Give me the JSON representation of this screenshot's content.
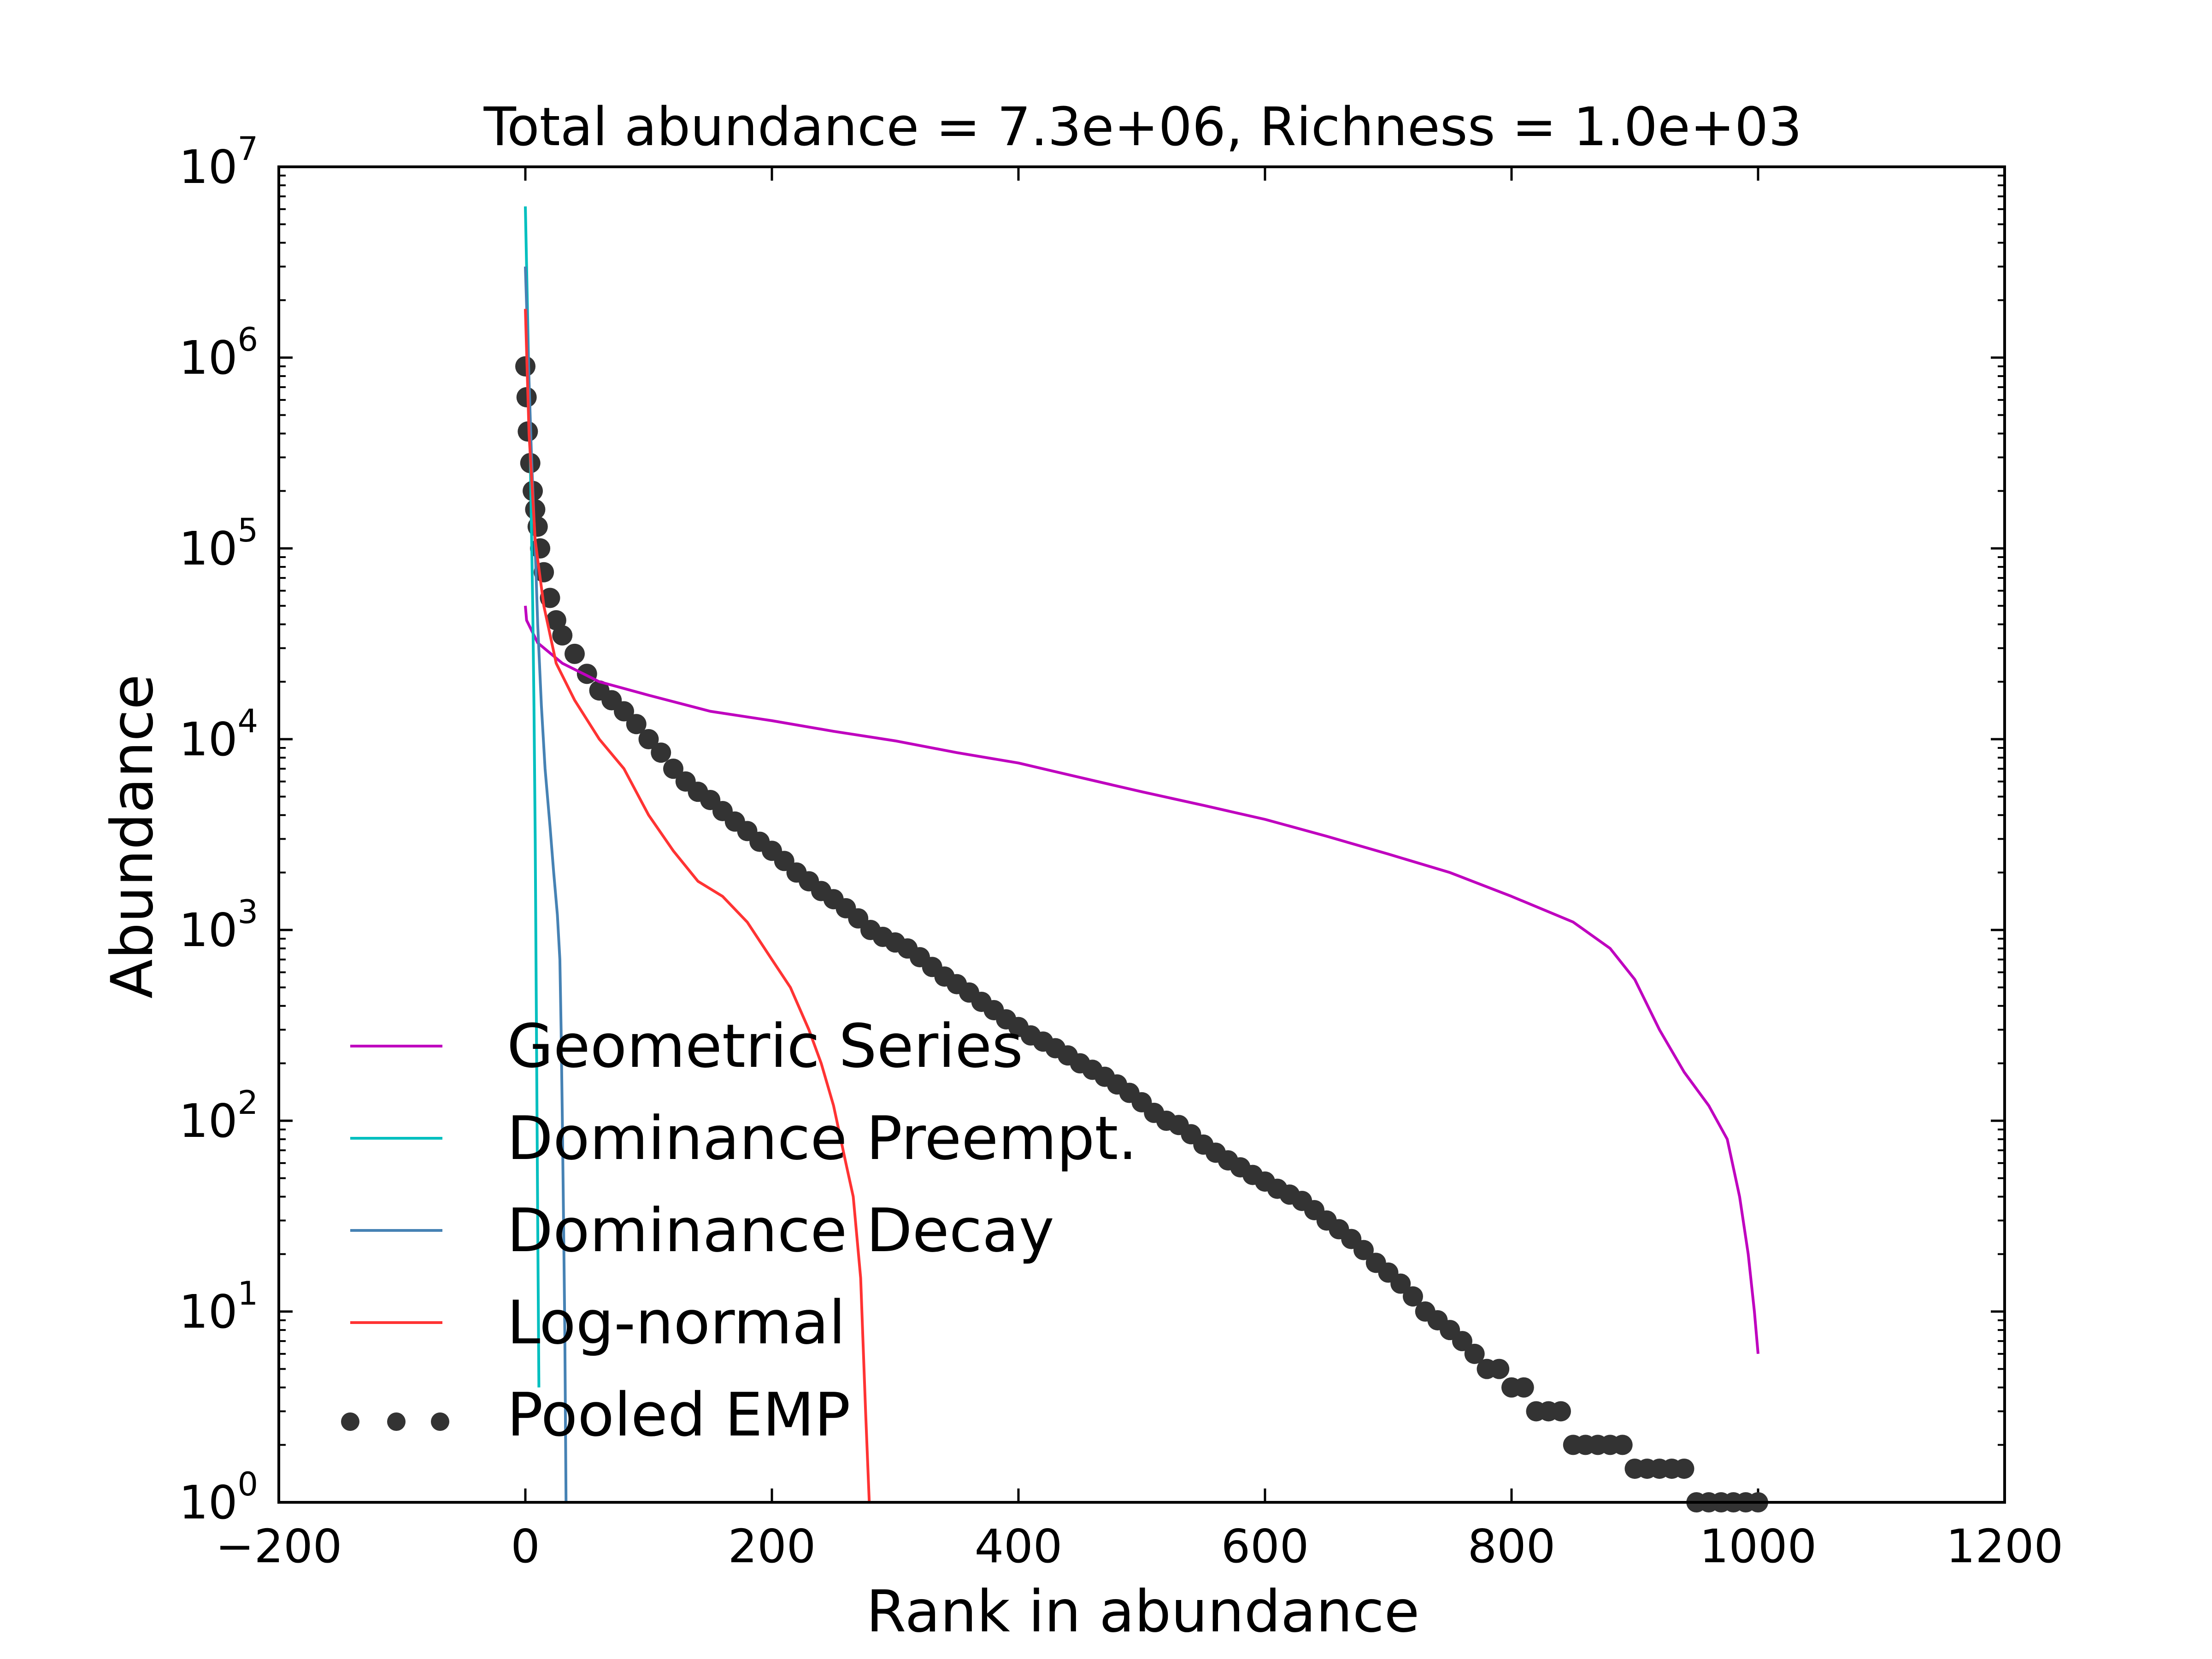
{
  "chart_data": {
    "type": "line",
    "title": "Total abundance = 7.3e+06, Richness = 1.0e+03",
    "xlabel": "Rank in abundance",
    "ylabel": "Abundance",
    "xlim": [
      -200,
      1200
    ],
    "ylim": [
      1,
      10000000
    ],
    "yscale": "log",
    "grid": false,
    "legend_position": "lower-left",
    "x_ticks": [
      {
        "value": -200,
        "label": "−200"
      },
      {
        "value": 0,
        "label": "0"
      },
      {
        "value": 200,
        "label": "200"
      },
      {
        "value": 400,
        "label": "400"
      },
      {
        "value": 600,
        "label": "600"
      },
      {
        "value": 800,
        "label": "800"
      },
      {
        "value": 1000,
        "label": "1000"
      },
      {
        "value": 1200,
        "label": "1200"
      }
    ],
    "y_ticks": [
      {
        "value": 1,
        "base": "10",
        "exp": "0"
      },
      {
        "value": 10,
        "base": "10",
        "exp": "1"
      },
      {
        "value": 100,
        "base": "10",
        "exp": "2"
      },
      {
        "value": 1000,
        "base": "10",
        "exp": "3"
      },
      {
        "value": 10000,
        "base": "10",
        "exp": "4"
      },
      {
        "value": 100000,
        "base": "10",
        "exp": "5"
      },
      {
        "value": 1000000,
        "base": "10",
        "exp": "6"
      },
      {
        "value": 10000000,
        "base": "10",
        "exp": "7"
      }
    ],
    "series": [
      {
        "name": "Geometric Series",
        "style": "line",
        "color": "#bf00bf",
        "points": [
          [
            0,
            50000
          ],
          [
            1,
            42000
          ],
          [
            10,
            32000
          ],
          [
            30,
            25000
          ],
          [
            60,
            20000
          ],
          [
            100,
            17000
          ],
          [
            150,
            14000
          ],
          [
            200,
            12500
          ],
          [
            250,
            11000
          ],
          [
            300,
            9800
          ],
          [
            350,
            8500
          ],
          [
            400,
            7500
          ],
          [
            450,
            6300
          ],
          [
            500,
            5300
          ],
          [
            550,
            4500
          ],
          [
            600,
            3800
          ],
          [
            650,
            3100
          ],
          [
            700,
            2500
          ],
          [
            750,
            2000
          ],
          [
            800,
            1500
          ],
          [
            850,
            1100
          ],
          [
            880,
            800
          ],
          [
            900,
            550
          ],
          [
            920,
            300
          ],
          [
            940,
            180
          ],
          [
            960,
            120
          ],
          [
            975,
            80
          ],
          [
            985,
            40
          ],
          [
            992,
            20
          ],
          [
            997,
            10
          ],
          [
            1000,
            6
          ]
        ]
      },
      {
        "name": "Dominance Preempt.",
        "style": "line",
        "color": "#00bfbf",
        "points": [
          [
            0,
            6200000
          ],
          [
            1,
            3000000
          ],
          [
            2,
            1500000
          ],
          [
            3,
            700000
          ],
          [
            4,
            300000
          ],
          [
            5,
            120000
          ],
          [
            6,
            50000
          ],
          [
            7,
            15000
          ],
          [
            8,
            3000
          ],
          [
            9,
            300
          ],
          [
            10,
            30
          ],
          [
            11,
            4
          ]
        ]
      },
      {
        "name": "Dominance Decay",
        "style": "line",
        "color": "#4682b4",
        "points": [
          [
            0,
            3000000
          ],
          [
            2,
            1200000
          ],
          [
            5,
            300000
          ],
          [
            8,
            100000
          ],
          [
            10,
            40000
          ],
          [
            13,
            15000
          ],
          [
            16,
            7000
          ],
          [
            20,
            3500
          ],
          [
            23,
            2000
          ],
          [
            26,
            1200
          ],
          [
            28,
            700
          ],
          [
            29,
            300
          ],
          [
            30,
            100
          ],
          [
            31,
            30
          ],
          [
            32,
            8
          ],
          [
            33,
            1
          ]
        ]
      },
      {
        "name": "Log-normal",
        "style": "line",
        "color": "#ff3333",
        "points": [
          [
            0,
            1800000
          ],
          [
            3,
            400000
          ],
          [
            8,
            110000
          ],
          [
            15,
            50000
          ],
          [
            25,
            25000
          ],
          [
            40,
            16000
          ],
          [
            60,
            10000
          ],
          [
            80,
            7000
          ],
          [
            100,
            4000
          ],
          [
            120,
            2600
          ],
          [
            140,
            1800
          ],
          [
            160,
            1500
          ],
          [
            180,
            1100
          ],
          [
            200,
            700
          ],
          [
            215,
            500
          ],
          [
            230,
            300
          ],
          [
            240,
            200
          ],
          [
            250,
            120
          ],
          [
            260,
            60
          ],
          [
            266,
            40
          ],
          [
            272,
            15
          ],
          [
            276,
            3
          ],
          [
            279,
            1
          ]
        ]
      },
      {
        "name": "Pooled EMP",
        "style": "markers",
        "color": "#333333",
        "points": [
          [
            0,
            900000
          ],
          [
            1,
            620000
          ],
          [
            2,
            410000
          ],
          [
            4,
            280000
          ],
          [
            6,
            200000
          ],
          [
            8,
            160000
          ],
          [
            10,
            130000
          ],
          [
            12,
            100000
          ],
          [
            15,
            75000
          ],
          [
            20,
            55000
          ],
          [
            25,
            42000
          ],
          [
            30,
            35000
          ],
          [
            40,
            28000
          ],
          [
            50,
            22000
          ],
          [
            60,
            18000
          ],
          [
            70,
            16000
          ],
          [
            80,
            14000
          ],
          [
            90,
            12000
          ],
          [
            100,
            10000
          ],
          [
            110,
            8500
          ],
          [
            120,
            7000
          ],
          [
            130,
            6000
          ],
          [
            140,
            5300
          ],
          [
            150,
            4800
          ],
          [
            160,
            4200
          ],
          [
            170,
            3700
          ],
          [
            180,
            3300
          ],
          [
            190,
            2900
          ],
          [
            200,
            2600
          ],
          [
            210,
            2300
          ],
          [
            220,
            2000
          ],
          [
            230,
            1800
          ],
          [
            240,
            1600
          ],
          [
            250,
            1450
          ],
          [
            260,
            1300
          ],
          [
            270,
            1150
          ],
          [
            280,
            1000
          ],
          [
            290,
            920
          ],
          [
            300,
            860
          ],
          [
            310,
            800
          ],
          [
            320,
            720
          ],
          [
            330,
            640
          ],
          [
            340,
            570
          ],
          [
            350,
            520
          ],
          [
            360,
            470
          ],
          [
            370,
            420
          ],
          [
            380,
            380
          ],
          [
            390,
            340
          ],
          [
            400,
            310
          ],
          [
            410,
            280
          ],
          [
            420,
            260
          ],
          [
            430,
            240
          ],
          [
            440,
            220
          ],
          [
            450,
            200
          ],
          [
            460,
            185
          ],
          [
            470,
            170
          ],
          [
            480,
            155
          ],
          [
            490,
            140
          ],
          [
            500,
            125
          ],
          [
            510,
            110
          ],
          [
            520,
            100
          ],
          [
            530,
            95
          ],
          [
            540,
            85
          ],
          [
            550,
            75
          ],
          [
            560,
            68
          ],
          [
            570,
            62
          ],
          [
            580,
            57
          ],
          [
            590,
            52
          ],
          [
            600,
            48
          ],
          [
            610,
            44
          ],
          [
            620,
            41
          ],
          [
            630,
            38
          ],
          [
            640,
            34
          ],
          [
            650,
            30
          ],
          [
            660,
            27
          ],
          [
            670,
            24
          ],
          [
            680,
            21
          ],
          [
            690,
            18
          ],
          [
            700,
            16
          ],
          [
            710,
            14
          ],
          [
            720,
            12
          ],
          [
            730,
            10
          ],
          [
            740,
            9
          ],
          [
            750,
            8
          ],
          [
            760,
            7
          ],
          [
            770,
            6
          ],
          [
            780,
            5
          ],
          [
            790,
            5
          ],
          [
            800,
            4
          ],
          [
            810,
            4
          ],
          [
            820,
            3
          ],
          [
            830,
            3
          ],
          [
            840,
            3
          ],
          [
            850,
            2
          ],
          [
            860,
            2
          ],
          [
            870,
            2
          ],
          [
            880,
            2
          ],
          [
            890,
            2
          ],
          [
            900,
            1.5
          ],
          [
            910,
            1.5
          ],
          [
            920,
            1.5
          ],
          [
            930,
            1.5
          ],
          [
            940,
            1.5
          ],
          [
            950,
            1
          ],
          [
            960,
            1
          ],
          [
            970,
            1
          ],
          [
            980,
            1
          ],
          [
            990,
            1
          ],
          [
            1000,
            1
          ]
        ]
      }
    ]
  }
}
